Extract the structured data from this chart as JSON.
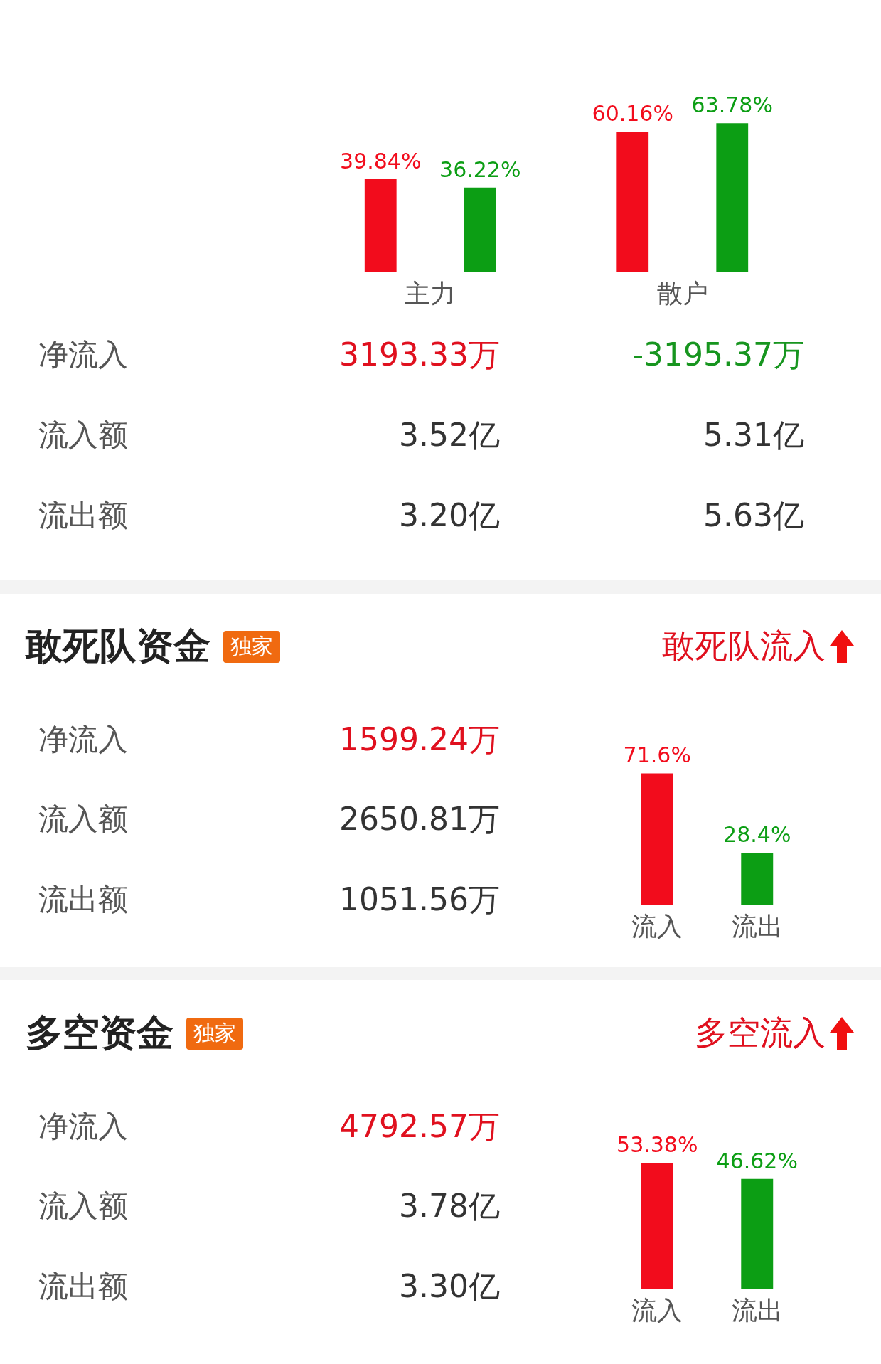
{
  "chart_data": [
    {
      "type": "bar",
      "categories": [
        "主力",
        "散户"
      ],
      "series": [
        {
          "color": "#f20c1c",
          "values": [
            39.84,
            60.16
          ],
          "value_labels": [
            "39.84%",
            "60.16%"
          ]
        },
        {
          "color": "#0c9e14",
          "values": [
            36.22,
            63.78
          ],
          "value_labels": [
            "36.22%",
            "63.78%"
          ]
        }
      ]
    },
    {
      "type": "other",
      "categories": [
        "净流入",
        "流入额",
        "流出额"
      ],
      "series": [
        {
          "values": [
            3193.33,
            3.52,
            3.2
          ],
          "value_labels": [
            "3193.33万",
            "3.52亿",
            "3.20亿"
          ],
          "colors": [
            "#e0101e",
            "#333333",
            "#333333"
          ]
        },
        {
          "values": [
            -3195.37,
            5.31,
            5.63
          ],
          "value_labels": [
            "-3195.37万",
            "5.31亿",
            "5.63亿"
          ],
          "colors": [
            "#17951f",
            "#333333",
            "#333333"
          ]
        }
      ]
    },
    {
      "type": "bar",
      "annotations": [
        "敢死队流入"
      ],
      "categories": [
        "流入",
        "流出"
      ],
      "values": [
        71.6,
        28.4
      ],
      "colors": [
        "#f20c1c",
        "#0c9e14"
      ],
      "value_labels": [
        "71.6%",
        "28.4%"
      ]
    },
    {
      "type": "other",
      "title": "敢死队资金",
      "annotations": [
        "独家"
      ],
      "categories": [
        "净流入",
        "流入额",
        "流出额"
      ],
      "series": [
        {
          "values": [
            1599.24,
            2650.81,
            1051.56
          ],
          "value_labels": [
            "1599.24万",
            "2650.81万",
            "1051.56万"
          ],
          "colors": [
            "#e0101e",
            "#333333",
            "#333333"
          ]
        }
      ]
    },
    {
      "type": "bar",
      "annotations": [
        "多空流入"
      ],
      "categories": [
        "流入",
        "流出"
      ],
      "values": [
        53.38,
        46.62
      ],
      "colors": [
        "#f20c1c",
        "#0c9e14"
      ],
      "value_labels": [
        "53.38%",
        "46.62%"
      ]
    },
    {
      "type": "other",
      "title": "多空资金",
      "annotations": [
        "独家"
      ],
      "categories": [
        "净流入",
        "流入额",
        "流出额"
      ],
      "series": [
        {
          "values": [
            4792.57,
            3.78,
            3.3
          ],
          "value_labels": [
            "4792.57万",
            "3.78亿",
            "3.30亿"
          ],
          "colors": [
            "#e0101e",
            "#333333",
            "#333333"
          ]
        }
      ]
    }
  ]
}
